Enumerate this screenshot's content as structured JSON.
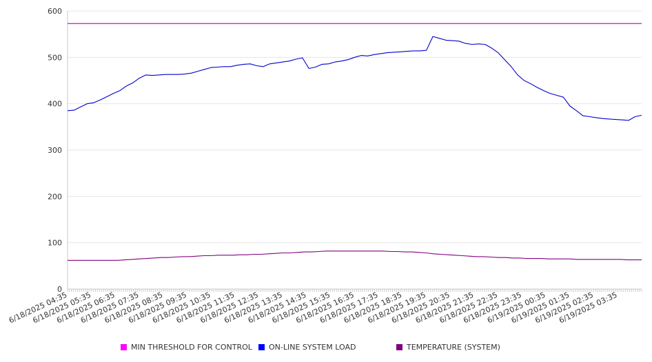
{
  "chart_data": {
    "type": "line",
    "title": "",
    "xlabel": "",
    "ylabel": "",
    "ylim": [
      0,
      600
    ],
    "yticks": [
      0,
      100,
      200,
      300,
      400,
      500,
      600
    ],
    "grid": true,
    "legend_position": "bottom",
    "x_tick_labels": [
      "6/18/2025 04:35",
      "6/18/2025 05:35",
      "6/18/2025 06:35",
      "6/18/2025 07:35",
      "6/18/2025 08:35",
      "6/18/2025 09:35",
      "6/18/2025 10:35",
      "6/18/2025 11:35",
      "6/18/2025 12:35",
      "6/18/2025 13:35",
      "6/18/2025 14:35",
      "6/18/2025 15:35",
      "6/18/2025 16:35",
      "6/18/2025 17:35",
      "6/18/2025 18:35",
      "6/18/2025 19:35",
      "6/18/2025 20:35",
      "6/18/2025 21:35",
      "6/18/2025 22:35",
      "6/18/2025 23:35",
      "6/19/2025 00:35",
      "6/19/2025 01:35",
      "6/19/2025 02:35",
      "6/19/2025 03:35"
    ],
    "x_hours": [
      0,
      0.25,
      0.5,
      0.75,
      1,
      1.25,
      1.5,
      1.75,
      2,
      2.25,
      2.5,
      2.75,
      3,
      3.25,
      3.5,
      3.75,
      4,
      4.25,
      4.5,
      4.75,
      5,
      5.25,
      5.5,
      5.75,
      6,
      6.25,
      6.5,
      6.75,
      7,
      7.25,
      7.5,
      7.75,
      8,
      8.25,
      8.5,
      8.75,
      9,
      9.25,
      9.5,
      9.75,
      10,
      10.25,
      10.5,
      10.75,
      11,
      11.25,
      11.5,
      11.75,
      12,
      12.25,
      12.5,
      12.75,
      13,
      13.25,
      13.5,
      13.75,
      14,
      14.25,
      14.5,
      14.75,
      15,
      15.25,
      15.5,
      15.75,
      16,
      16.25,
      16.5,
      16.75,
      17,
      17.25,
      17.5,
      17.75,
      18,
      18.25,
      18.5,
      18.75,
      19,
      19.25,
      19.5,
      19.75,
      20,
      20.25,
      20.5,
      20.75,
      21,
      21.25,
      21.5,
      21.75,
      22,
      22.25,
      22.5,
      22.75,
      23,
      23.25,
      23.5,
      23.75,
      24
    ],
    "x_max_hours": 24,
    "series": [
      {
        "name": "MIN THRESHOLD FOR CONTROL",
        "color": "#b000b0",
        "legend_color": "#ff00ff",
        "values": [
          573,
          573,
          573,
          573,
          573,
          573,
          573,
          573,
          573,
          573,
          573,
          573,
          573,
          573,
          573,
          573,
          573,
          573,
          573,
          573,
          573,
          573,
          573,
          573,
          573,
          573,
          573,
          573,
          573,
          573,
          573,
          573,
          573,
          573,
          573,
          573,
          573,
          573,
          573,
          573,
          573,
          573,
          573,
          573,
          573,
          573,
          573,
          573,
          573,
          573,
          573,
          573,
          573,
          573,
          573,
          573,
          573,
          573,
          573,
          573,
          573,
          573,
          573,
          573,
          573,
          573,
          573,
          573,
          573,
          573,
          573,
          573,
          573,
          573,
          573,
          573,
          573,
          573,
          573,
          573,
          573,
          573,
          573,
          573,
          573,
          573,
          573,
          573,
          573,
          573,
          573,
          573,
          573,
          573,
          573,
          573,
          573
        ]
      },
      {
        "name": "ON-LINE SYSTEM LOAD",
        "color": "#0000cc",
        "legend_color": "#0000ff",
        "values": [
          385,
          386,
          393,
          400,
          402,
          408,
          415,
          422,
          428,
          438,
          445,
          455,
          462,
          461,
          462,
          463,
          463,
          463,
          464,
          466,
          470,
          474,
          478,
          479,
          480,
          480,
          483,
          485,
          486,
          482,
          480,
          486,
          488,
          490,
          492,
          496,
          499,
          476,
          479,
          485,
          486,
          490,
          492,
          495,
          500,
          504,
          503,
          506,
          508,
          510,
          511,
          512,
          513,
          514,
          514,
          515,
          545,
          541,
          537,
          536,
          535,
          530,
          528,
          529,
          528,
          520,
          510,
          495,
          480,
          462,
          450,
          443,
          435,
          428,
          422,
          418,
          414,
          395,
          385,
          374,
          372,
          370,
          368,
          367,
          366,
          365,
          364,
          372,
          375
        ]
      },
      {
        "name": "TEMPERATURE (SYSTEM)",
        "color": "#800080",
        "legend_color": "#800080",
        "values": [
          62,
          62,
          62,
          62,
          62,
          62,
          62,
          62,
          63,
          64,
          65,
          66,
          67,
          68,
          68,
          69,
          70,
          70,
          71,
          72,
          72,
          73,
          73,
          73,
          74,
          74,
          75,
          75,
          76,
          77,
          78,
          78,
          79,
          80,
          80,
          81,
          82,
          82,
          82,
          82,
          82,
          82,
          82,
          82,
          82,
          81,
          81,
          80,
          80,
          79,
          78,
          76,
          75,
          74,
          73,
          72,
          71,
          70,
          70,
          69,
          68,
          68,
          67,
          67,
          66,
          66,
          66,
          65,
          65,
          65,
          65,
          64,
          64,
          64,
          64,
          64,
          64,
          64,
          63,
          63,
          63
        ]
      }
    ]
  }
}
